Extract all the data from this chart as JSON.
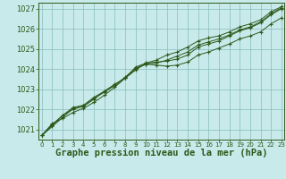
{
  "background_color": "#c8eaea",
  "plot_bg_color": "#c8eaea",
  "grid_color": "#88bbbb",
  "line_color": "#2d5a1b",
  "marker": "+",
  "xlabel": "Graphe pression niveau de la mer (hPa)",
  "xlabel_fontsize": 7.5,
  "xlim_min": -0.3,
  "xlim_max": 23.3,
  "ylim_min": 1020.5,
  "ylim_max": 1027.3,
  "yticks": [
    1021,
    1022,
    1023,
    1024,
    1025,
    1026,
    1027
  ],
  "xticks": [
    0,
    1,
    2,
    3,
    4,
    5,
    6,
    7,
    8,
    9,
    10,
    11,
    12,
    13,
    14,
    15,
    16,
    17,
    18,
    19,
    20,
    21,
    22,
    23
  ],
  "series": [
    [
      1020.7,
      1021.3,
      1021.55,
      1021.85,
      1022.05,
      1022.35,
      1022.7,
      1023.1,
      1023.55,
      1024.0,
      1024.25,
      1024.2,
      1024.15,
      1024.2,
      1024.35,
      1024.7,
      1024.85,
      1025.05,
      1025.25,
      1025.5,
      1025.65,
      1025.85,
      1026.25,
      1026.55
    ],
    [
      1020.7,
      1021.25,
      1021.7,
      1022.0,
      1022.15,
      1022.5,
      1022.9,
      1023.25,
      1023.55,
      1024.1,
      1024.3,
      1024.35,
      1024.4,
      1024.5,
      1024.7,
      1025.1,
      1025.25,
      1025.4,
      1025.65,
      1025.9,
      1026.05,
      1026.3,
      1026.7,
      1027.0
    ],
    [
      1020.7,
      1021.2,
      1021.7,
      1022.1,
      1022.2,
      1022.55,
      1022.85,
      1023.2,
      1023.6,
      1024.05,
      1024.25,
      1024.3,
      1024.45,
      1024.65,
      1024.85,
      1025.2,
      1025.35,
      1025.5,
      1025.7,
      1025.95,
      1026.1,
      1026.35,
      1026.75,
      1027.05
    ],
    [
      1020.7,
      1021.15,
      1021.6,
      1022.05,
      1022.2,
      1022.6,
      1022.9,
      1023.2,
      1023.55,
      1023.95,
      1024.3,
      1024.45,
      1024.7,
      1024.85,
      1025.1,
      1025.4,
      1025.55,
      1025.65,
      1025.85,
      1026.1,
      1026.25,
      1026.45,
      1026.85,
      1027.1
    ]
  ]
}
